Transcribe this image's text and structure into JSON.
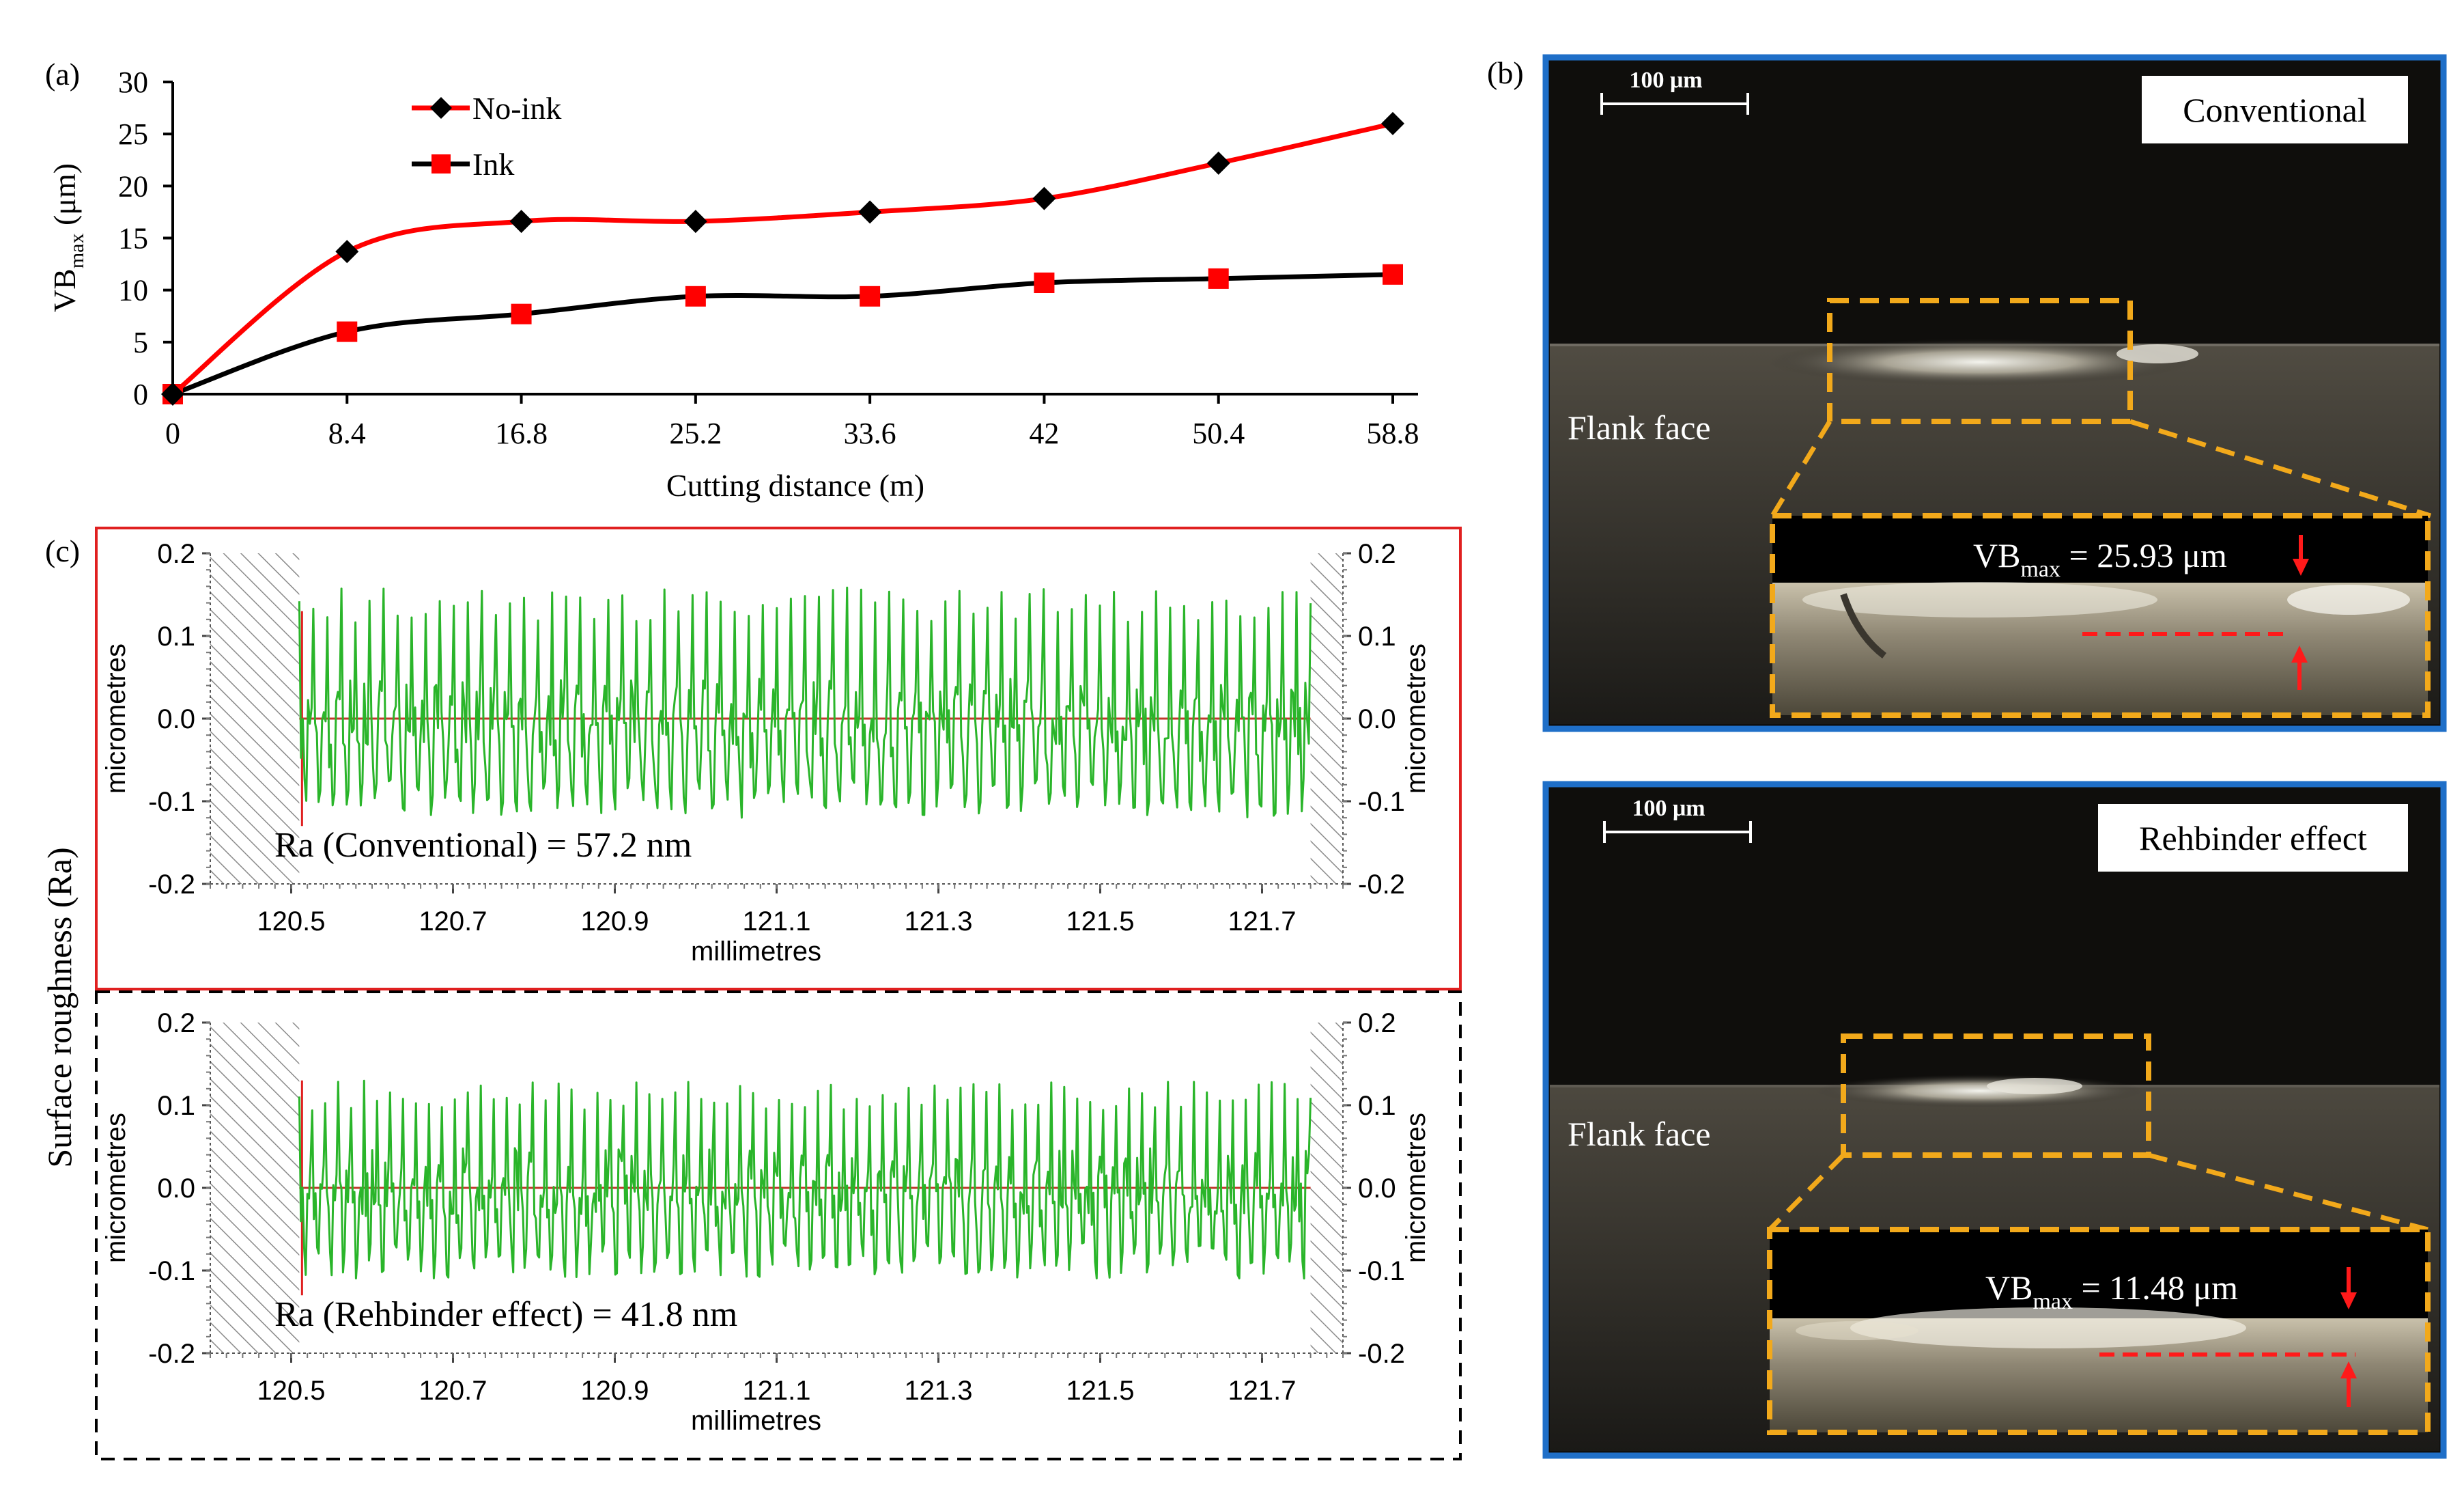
{
  "panel_labels": {
    "a": "(a)",
    "b": "(b)",
    "c": "(c)"
  },
  "colors": {
    "no_ink": "#ff0000",
    "ink": "#000000",
    "marker_ink": "#ff0000",
    "profile": "#2ab52a",
    "frame_blue": "#1f6fc8",
    "frame_orange": "#f2a91b",
    "frame_red": "#e02020",
    "arrow": "#ff1a1a"
  },
  "chart_data": [
    {
      "type": "line",
      "title": "",
      "xlabel": "Cutting distance (m)",
      "ylabel_base": "VB",
      "ylabel_sub": "max",
      "ylabel_unit": " (μm)",
      "ylim": [
        0,
        30
      ],
      "yticks": [
        "0",
        "5",
        "10",
        "15",
        "20",
        "25",
        "30"
      ],
      "categories": [
        "0",
        "8.4",
        "16.8",
        "25.2",
        "33.6",
        "42",
        "50.4",
        "58.8"
      ],
      "x": [
        0,
        8.4,
        16.8,
        25.2,
        33.6,
        42,
        50.4,
        58.8
      ],
      "legend_position": "top-left",
      "series": [
        {
          "name": "No-ink",
          "values": [
            0,
            13.7,
            16.6,
            16.6,
            17.5,
            18.8,
            22.2,
            26.0
          ],
          "color": "#ff0000",
          "marker": "diamond"
        },
        {
          "name": "Ink",
          "values": [
            0,
            6.0,
            7.7,
            9.4,
            9.4,
            10.7,
            11.1,
            11.5
          ],
          "color": "#000000",
          "marker": "square"
        }
      ]
    },
    {
      "type": "line",
      "title": "Ra (Conventional) = 57.2 nm",
      "xlabel": "millimetres",
      "ylabel": "micrometres",
      "ylabel_right": "micrometres",
      "xlim": [
        120.4,
        121.8
      ],
      "ylim": [
        -0.2,
        0.2
      ],
      "xticks": [
        "120.5",
        "120.7",
        "120.9",
        "121.1",
        "121.3",
        "121.5",
        "121.7"
      ],
      "yticks": [
        "-0.2",
        "-0.1",
        "0.0",
        "0.1",
        "0.2"
      ],
      "profile": {
        "x_start": 120.51,
        "x_end": 121.76,
        "peaks": 72,
        "amplitude_max": 0.16,
        "amplitude_min": -0.12
      }
    },
    {
      "type": "line",
      "title": "Ra (Rehbinder effect) = 41.8 nm",
      "xlabel": "millimetres",
      "ylabel": "micrometres",
      "ylabel_right": "micrometres",
      "xlim": [
        120.4,
        121.8
      ],
      "ylim": [
        -0.2,
        0.2
      ],
      "xticks": [
        "120.5",
        "120.7",
        "120.9",
        "121.1",
        "121.3",
        "121.5",
        "121.7"
      ],
      "yticks": [
        "-0.2",
        "-0.1",
        "0.0",
        "0.1",
        "0.2"
      ],
      "profile": {
        "x_start": 120.51,
        "x_end": 121.76,
        "peaks": 78,
        "amplitude_max": 0.13,
        "amplitude_min": -0.11
      }
    }
  ],
  "panel_c_ylabel": "Surface roughness (Ra)",
  "micrographs": [
    {
      "label": "Conventional",
      "scale_bar": "100 μm",
      "face_label": "Flank face",
      "vb_base": "VB",
      "vb_sub": "max",
      "vb_value": " = 25.93 μm"
    },
    {
      "label": "Rehbinder effect",
      "scale_bar": "100 μm",
      "face_label": "Flank face",
      "vb_base": "VB",
      "vb_sub": "max",
      "vb_value": " = 11.48 μm"
    }
  ]
}
